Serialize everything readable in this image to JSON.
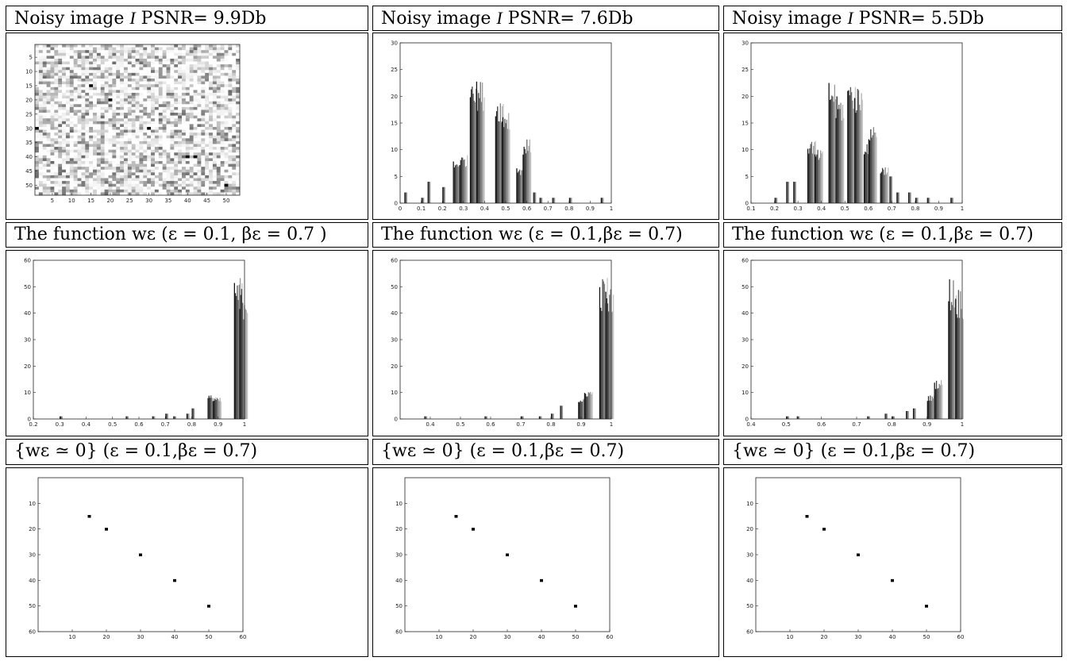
{
  "headers": {
    "row1": [
      {
        "pre": "Noisy image ",
        "var": "I",
        "post": " PSNR= 9.9Db"
      },
      {
        "pre": "Noisy image ",
        "var": "I",
        "post": " PSNR= 7.6Db"
      },
      {
        "pre": "Noisy image ",
        "var": "I",
        "post": " PSNR= 5.5Db"
      }
    ],
    "row2": [
      "The function wε (ε = 0.1, βε = 0.7 )",
      "The function wε (ε = 0.1,βε = 0.7)",
      "The function wε (ε = 0.1,βε = 0.7)"
    ],
    "row3": [
      "{wε ≃ 0} (ε = 0.1,βε = 0.7)",
      "{wε ≃ 0} (ε = 0.1,βε = 0.7)",
      "{wε ≃ 0} (ε = 0.1,βε = 0.7)"
    ]
  },
  "chart_data": [
    {
      "type": "heatmap",
      "title": "",
      "xticks": [
        "5",
        "10",
        "15",
        "20",
        "25",
        "30",
        "35",
        "40",
        "45",
        "50"
      ],
      "yticks": [
        "5",
        "10",
        "15",
        "20",
        "25",
        "30",
        "35",
        "40",
        "45",
        "50"
      ],
      "xlim": [
        0.5,
        53.5
      ],
      "ylim": [
        0.5,
        53.5
      ],
      "dark_pixels": [
        [
          15,
          15
        ],
        [
          20,
          20
        ],
        [
          30,
          30
        ],
        [
          40,
          40
        ],
        [
          50,
          50
        ],
        [
          1,
          30
        ],
        [
          42,
          40
        ]
      ]
    },
    {
      "type": "bar",
      "title": "",
      "xlim": [
        0,
        1
      ],
      "ylim": [
        0,
        30
      ],
      "xticks": [
        "0",
        "0.1",
        "0.2",
        "0.3",
        "0.4",
        "0.5",
        "0.6",
        "0.7",
        "0.8",
        "0.9",
        "1"
      ],
      "yticks": [
        "0",
        "5",
        "10",
        "15",
        "20",
        "25",
        "30"
      ],
      "x": [
        0.02,
        0.1,
        0.13,
        0.2,
        0.25,
        0.28,
        0.33,
        0.36,
        0.45,
        0.48,
        0.55,
        0.58,
        0.63,
        0.66,
        0.72,
        0.8,
        0.95
      ],
      "values": [
        2,
        1,
        4,
        3,
        8,
        9,
        25,
        23,
        20,
        18,
        7,
        12,
        2,
        1,
        1,
        1,
        1
      ]
    },
    {
      "type": "bar",
      "title": "",
      "xlim": [
        0.1,
        1
      ],
      "ylim": [
        0,
        30
      ],
      "xticks": [
        "0.1",
        "0.2",
        "0.3",
        "0.4",
        "0.5",
        "0.6",
        "0.7",
        "0.8",
        "0.9",
        "1"
      ],
      "yticks": [
        "0",
        "5",
        "10",
        "15",
        "20",
        "25",
        "30"
      ],
      "x": [
        0.2,
        0.25,
        0.28,
        0.34,
        0.37,
        0.43,
        0.46,
        0.51,
        0.54,
        0.58,
        0.6,
        0.65,
        0.69,
        0.72,
        0.77,
        0.8,
        0.85,
        0.95
      ],
      "values": [
        1,
        4,
        4,
        12,
        10,
        23,
        20,
        23,
        22,
        12,
        15,
        7,
        5,
        2,
        2,
        1,
        1,
        1
      ]
    },
    {
      "type": "bar",
      "title": "",
      "xlim": [
        0.2,
        1
      ],
      "ylim": [
        0,
        60
      ],
      "xticks": [
        "0.2",
        "0.3",
        "0.4",
        "0.5",
        "0.6",
        "0.7",
        "0.8",
        "0.9",
        "1"
      ],
      "yticks": [
        "0",
        "10",
        "20",
        "30",
        "40",
        "50",
        "60"
      ],
      "x": [
        0.3,
        0.55,
        0.65,
        0.7,
        0.73,
        0.78,
        0.8,
        0.86,
        0.88,
        0.96,
        0.98
      ],
      "values": [
        1,
        1,
        1,
        2,
        1,
        2,
        4,
        9,
        8,
        54,
        50
      ]
    },
    {
      "type": "bar",
      "title": "",
      "xlim": [
        0.3,
        1
      ],
      "ylim": [
        0,
        60
      ],
      "xticks": [
        "0.4",
        "0.5",
        "0.6",
        "0.7",
        "0.8",
        "0.9",
        "1"
      ],
      "yticks": [
        "0",
        "10",
        "20",
        "30",
        "40",
        "50",
        "60"
      ],
      "x": [
        0.38,
        0.58,
        0.7,
        0.76,
        0.8,
        0.83,
        0.89,
        0.91,
        0.96,
        0.98
      ],
      "values": [
        1,
        1,
        1,
        1,
        2,
        5,
        8,
        11,
        54,
        50
      ]
    },
    {
      "type": "bar",
      "title": "",
      "xlim": [
        0.4,
        1
      ],
      "ylim": [
        0,
        60
      ],
      "xticks": [
        "0.4",
        "0.5",
        "0.6",
        "0.7",
        "0.8",
        "0.9",
        "1"
      ],
      "yticks": [
        "0",
        "10",
        "20",
        "30",
        "40",
        "50",
        "60"
      ],
      "x": [
        0.5,
        0.53,
        0.73,
        0.78,
        0.8,
        0.84,
        0.86,
        0.9,
        0.92,
        0.96,
        0.98
      ],
      "values": [
        1,
        1,
        1,
        2,
        1,
        3,
        4,
        9,
        15,
        54,
        50
      ]
    },
    {
      "type": "scatter",
      "title": "",
      "xlim": [
        0,
        60
      ],
      "ylim": [
        0,
        60
      ],
      "y_inverted": true,
      "xticks": [
        "10",
        "20",
        "30",
        "40",
        "50",
        "60"
      ],
      "yticks": [
        "10",
        "20",
        "30",
        "40",
        "50",
        "60"
      ],
      "x": [
        15,
        20,
        30,
        40,
        50
      ],
      "y": [
        15,
        20,
        30,
        40,
        50
      ]
    },
    {
      "type": "scatter",
      "title": "",
      "xlim": [
        0,
        60
      ],
      "ylim": [
        0,
        60
      ],
      "y_inverted": true,
      "xticks": [
        "10",
        "20",
        "30",
        "40",
        "50",
        "60"
      ],
      "yticks": [
        "10",
        "20",
        "30",
        "40",
        "50",
        "60"
      ],
      "x": [
        15,
        20,
        30,
        40,
        50
      ],
      "y": [
        15,
        20,
        30,
        40,
        50
      ]
    },
    {
      "type": "scatter",
      "title": "",
      "xlim": [
        0,
        60
      ],
      "ylim": [
        0,
        60
      ],
      "y_inverted": true,
      "xticks": [
        "10",
        "20",
        "30",
        "40",
        "50",
        "60"
      ],
      "yticks": [
        "10",
        "20",
        "30",
        "40",
        "50",
        "60"
      ],
      "x": [
        15,
        20,
        30,
        40,
        50
      ],
      "y": [
        15,
        20,
        30,
        40,
        50
      ]
    }
  ]
}
